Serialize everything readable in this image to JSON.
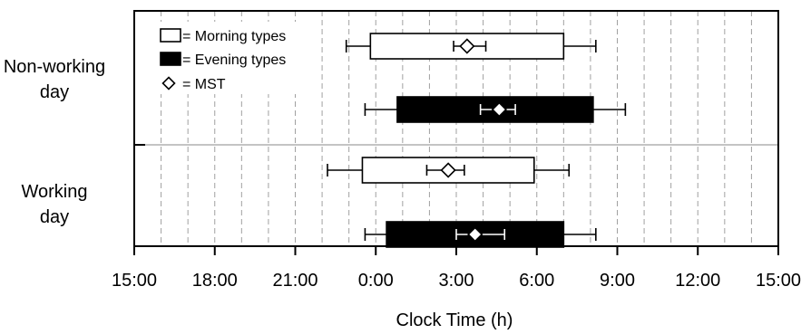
{
  "chart_data": {
    "type": "boxplot",
    "title": "",
    "xlabel": "Clock Time (h)",
    "ylabel": "",
    "x_range_hours": [
      15,
      39
    ],
    "x_ticks": [
      15,
      18,
      21,
      24,
      27,
      30,
      33,
      36,
      39
    ],
    "x_tick_labels": [
      "15:00",
      "18:00",
      "21:00",
      "0:00",
      "3:00",
      "6:00",
      "9:00",
      "12:00",
      "15:00"
    ],
    "minor_gridlines_hours": [
      16,
      17,
      19,
      20,
      22,
      23,
      25,
      26,
      28,
      29,
      31,
      32,
      34,
      35,
      37,
      38
    ],
    "grid": "vertical dashed, every hour",
    "groups": [
      {
        "label_line1": "Non-working",
        "label_line2": "day"
      },
      {
        "label_line1": "Working",
        "label_line2": "day"
      }
    ],
    "legend": {
      "placement": "top-left",
      "items": [
        {
          "symbol": "open-box",
          "label": "= Morning types"
        },
        {
          "symbol": "filled-box",
          "label": "= Evening types"
        },
        {
          "symbol": "open-diamond",
          "label": "= MST"
        }
      ]
    },
    "series": [
      {
        "group": 0,
        "type_key": "morning",
        "whisker_low": 22.9,
        "box_low": 23.8,
        "box_high": 31.0,
        "whisker_high": 32.2,
        "mst": 27.4,
        "mst_err_low": 26.9,
        "mst_err_high": 28.1
      },
      {
        "group": 0,
        "type_key": "evening",
        "whisker_low": 23.6,
        "box_low": 24.8,
        "box_high": 32.1,
        "whisker_high": 33.3,
        "mst": 28.6,
        "mst_err_low": 27.9,
        "mst_err_high": 29.2
      },
      {
        "group": 1,
        "type_key": "morning",
        "whisker_low": 22.2,
        "box_low": 23.5,
        "box_high": 29.9,
        "whisker_high": 31.2,
        "mst": 26.7,
        "mst_err_low": 25.9,
        "mst_err_high": 27.3
      },
      {
        "group": 1,
        "type_key": "evening",
        "whisker_low": 23.6,
        "box_low": 24.4,
        "box_high": 31.0,
        "whisker_high": 32.2,
        "mst": 27.7,
        "mst_err_low": 27.0,
        "mst_err_high": 28.8
      }
    ],
    "colors": {
      "morning_fill": "#ffffff",
      "evening_fill": "#000000",
      "grid": "#a0a0a0",
      "separator": "#b0b0b0"
    }
  }
}
